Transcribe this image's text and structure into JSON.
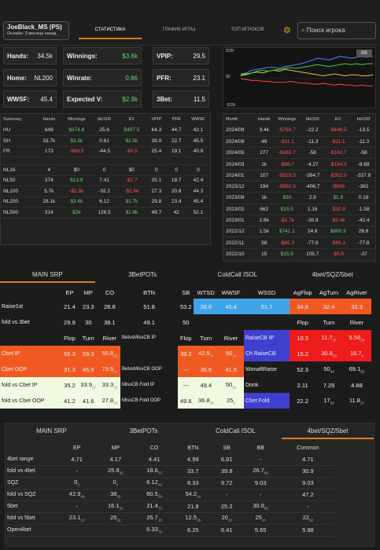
{
  "user": {
    "name": "JoeBlack_MS (PS)",
    "status": "Онлайн: 3 месяца назад"
  },
  "nav": {
    "tabs": [
      "СТАТИСТИКА",
      "ГРАФИК ИГРЫ",
      "ТОП ИГРОКОВ"
    ],
    "active": 0
  },
  "search": {
    "placeholder": "Поиск игрока"
  },
  "stats": [
    {
      "label": "Hands:",
      "value": "34.5k"
    },
    {
      "label": "Winnings:",
      "value": "$3.6k"
    },
    {
      "label": "VPIP:",
      "value": "29.5"
    },
    {
      "label": "Home:",
      "value": "NL200"
    },
    {
      "label": "Winrate:",
      "value": "0.86"
    },
    {
      "label": "PFR:",
      "value": "23.1"
    },
    {
      "label": "WWSF:",
      "value": "45.4"
    },
    {
      "label": "Expected V:",
      "value": "$2.9k"
    },
    {
      "label": "3Bet:",
      "value": "11.5"
    }
  ],
  "summary": {
    "headers": [
      "Summary",
      "Hands",
      "Winnings",
      "bb/100",
      "EV",
      "VPIP",
      "PFR",
      "WWSF"
    ],
    "rows": [
      [
        "HU",
        "649",
        "$374.6",
        "25.6",
        "$407.5",
        "64.3",
        "44.7",
        "42.1"
      ],
      [
        "SH",
        "33.7k",
        "$3.3k",
        "0.61",
        "$2.5k",
        "28.9",
        "22.7",
        "45.5"
      ],
      [
        "FR",
        "173",
        "-$69.5",
        "-44.5",
        "-$0.5",
        "25.4",
        "19.1",
        "40.9"
      ]
    ],
    "limits": [
      [
        "NL16",
        "4",
        "$0",
        "0",
        "$0",
        "0",
        "0",
        "0"
      ],
      [
        "NL50",
        "374",
        "$13.9",
        "7.41",
        "-$7.7",
        "25.1",
        "18.7",
        "42.4"
      ],
      [
        "NL100",
        "5.7k",
        "-$1.8k",
        "-32.2",
        "-$1.6k",
        "27.3",
        "20.8",
        "44.3"
      ],
      [
        "NL200",
        "28.1k",
        "$3.4k",
        "6.12",
        "$1.7k",
        "29.8",
        "23.4",
        "45.4"
      ],
      [
        "NL500",
        "314",
        "$2k",
        "126.5",
        "$2.8k",
        "49.7",
        "42",
        "52.1"
      ]
    ]
  },
  "chart": {
    "ytop": "$28k",
    "ymid": "$0",
    "ybot": "-$28k",
    "badge": "BB"
  },
  "chart_data": {
    "type": "line",
    "ylim": [
      -28,
      28
    ],
    "series": [
      {
        "color": "#3a8bff",
        "values": [
          5,
          6,
          9,
          10,
          11,
          12,
          12,
          11,
          13,
          14,
          15,
          16,
          18,
          20,
          22,
          21,
          20,
          22,
          24,
          23,
          22,
          23,
          24,
          23,
          24
        ]
      },
      {
        "color": "#f0c040",
        "values": [
          4,
          5,
          6,
          7,
          6,
          8,
          9,
          8,
          10,
          9,
          8,
          7,
          6,
          5,
          4,
          3,
          4,
          5,
          4,
          3,
          4,
          4,
          3,
          3,
          4
        ]
      },
      {
        "color": "#44cc44",
        "values": [
          3,
          4,
          6,
          8,
          9,
          8,
          9,
          10,
          11,
          12,
          11,
          12,
          13,
          14,
          15,
          14,
          13,
          14,
          15,
          16,
          15,
          16,
          15,
          16,
          16
        ]
      },
      {
        "color": "#ff4444",
        "values": [
          0,
          -1,
          -2,
          -2,
          -3,
          -3,
          -4,
          -4,
          -4,
          -3,
          -4,
          -5,
          -5,
          -6,
          -6,
          -5,
          -6,
          -7,
          -6,
          -7,
          -7,
          -8,
          -7,
          -8,
          -8
        ]
      }
    ]
  },
  "monthly": {
    "headers": [
      "Month",
      "Hands",
      "Winnings",
      "bb/100",
      "EV",
      "bb/100"
    ],
    "rows": [
      [
        "2024/09",
        "3.4k",
        "-$764.7",
        "-22.2",
        "-$446.5",
        "-13.5"
      ],
      [
        "2024/08",
        "49",
        "-$11.1",
        "-11.3",
        "-$11.1",
        "-11.3"
      ],
      [
        "2024/05",
        "277",
        "-$160.7",
        "-58",
        "-$160.7",
        "-58"
      ],
      [
        "2024/03",
        "1k",
        "-$88.7",
        "-4.27",
        "-$184.3",
        "-8.88"
      ],
      [
        "2024/01",
        "107",
        "-$519.3",
        "-394.7",
        "-$352.9",
        "-337.9"
      ],
      [
        "2023/12",
        "194",
        "-$992.5",
        "-406.7",
        "-$806",
        "-361"
      ],
      [
        "2023/08",
        "1k",
        "$30",
        "2.9",
        "$1.9",
        "0.18"
      ],
      [
        "2023/02",
        "662",
        "$15.5",
        "1.16",
        "-$20.9",
        "-1.58"
      ],
      [
        "2023/01",
        "2.8k",
        "-$1.7k",
        "-30.8",
        "-$2.4k",
        "-42.4"
      ],
      [
        "2022/12",
        "1.5k",
        "$741.1",
        "24.6",
        "$800.3",
        "26.6"
      ],
      [
        "2022/11",
        "59",
        "-$85.3",
        "-77.8",
        "-$85.3",
        "-77.8"
      ],
      [
        "2022/10",
        "15",
        "$15.9",
        "105.7",
        "-$5.6",
        "-37"
      ]
    ],
    "red_cells": [
      [
        0,
        2
      ],
      [
        0,
        4
      ],
      [
        1,
        2
      ],
      [
        1,
        4
      ],
      [
        2,
        2
      ],
      [
        2,
        4
      ],
      [
        3,
        2
      ],
      [
        3,
        4
      ],
      [
        4,
        2
      ],
      [
        4,
        4
      ],
      [
        5,
        2
      ],
      [
        5,
        4
      ],
      [
        7,
        4
      ],
      [
        8,
        2
      ],
      [
        8,
        4
      ],
      [
        10,
        2
      ],
      [
        10,
        4
      ],
      [
        11,
        4
      ]
    ],
    "green_cells": [
      [
        6,
        2
      ],
      [
        6,
        4
      ],
      [
        7,
        2
      ],
      [
        9,
        2
      ],
      [
        9,
        4
      ],
      [
        11,
        2
      ]
    ]
  },
  "tabs1": [
    "MAIN SRP",
    "3BetPOTs",
    "ColdCall ISOL",
    "4bet/SQZ/5bet"
  ],
  "tabs2": [
    "MAIN SRP",
    "3BetPOTs",
    "ColdCall ISOL",
    "4bet/SQZ/5bet"
  ],
  "grid1": {
    "rows": [
      [
        [
          "",
          "#1c1c1c",
          ""
        ],
        [
          "EP",
          "#1c1c1c",
          ""
        ],
        [
          "MP",
          "#1c1c1c",
          ""
        ],
        [
          "CO",
          "#1c1c1c",
          ""
        ],
        [
          "BTN",
          "#1c1c1c",
          ""
        ],
        [
          "SB",
          "#1c1c1c",
          ""
        ],
        [
          "WTSD",
          "#1c1c1c",
          ""
        ],
        [
          "WWSF",
          "#1c1c1c",
          ""
        ],
        [
          "WSSD",
          "#1c1c1c",
          ""
        ],
        [
          "AgFlop",
          "#1c1c1c",
          ""
        ],
        [
          "AgTurn",
          "#1c1c1c",
          ""
        ],
        [
          "AgRiver",
          "#1c1c1c",
          ""
        ]
      ],
      [
        [
          "Raise1st",
          "#1c1c1c",
          ""
        ],
        [
          "21.4",
          "#1c1c1c",
          ""
        ],
        [
          "23.3",
          "#1c1c1c",
          ""
        ],
        [
          "28.8",
          "#1c1c1c",
          ""
        ],
        [
          "51.8",
          "#1c1c1c",
          ""
        ],
        [
          "53.2",
          "#1c1c1c",
          ""
        ],
        [
          "39.6",
          "#3ea6e8",
          ""
        ],
        [
          "45.4",
          "#3ea6e8",
          ""
        ],
        [
          "51.7",
          "#3ea6e8",
          ""
        ],
        [
          "34.8",
          "#f05a22",
          ""
        ],
        [
          "32.4",
          "#f05a22",
          ""
        ],
        [
          "33.3",
          "#f05a22",
          ""
        ]
      ],
      [
        [
          "fold vs 3bet",
          "#1c1c1c",
          ""
        ],
        [
          "29.9",
          "#1c1c1c",
          ""
        ],
        [
          "30",
          "#1c1c1c",
          ""
        ],
        [
          "38.1",
          "#1c1c1c",
          ""
        ],
        [
          "49.1",
          "#1c1c1c",
          ""
        ],
        [
          "50",
          "#1c1c1c",
          ""
        ],
        [
          "",
          "#1c1c1c",
          ""
        ],
        [
          "",
          "#1c1c1c",
          ""
        ],
        [
          "",
          "#1c1c1c",
          ""
        ],
        [
          "Flop",
          "#1c1c1c",
          ""
        ],
        [
          "Turn",
          "#1c1c1c",
          ""
        ],
        [
          "River",
          "#1c1c1c",
          ""
        ]
      ],
      [
        [
          "",
          "#1c1c1c",
          ""
        ],
        [
          "Flop",
          "#1c1c1c",
          ""
        ],
        [
          "Turn",
          "#1c1c1c",
          ""
        ],
        [
          "River",
          "#1c1c1c",
          ""
        ],
        [
          "BetvsMissCB IP",
          "#1c1c1c",
          ""
        ],
        [
          "Flop",
          "#1c1c1c",
          ""
        ],
        [
          "Turn",
          "#1c1c1c",
          ""
        ],
        [
          "River",
          "#1c1c1c",
          ""
        ],
        [
          "RaiseCB IP",
          "#4040d0",
          ""
        ],
        [
          "10.3",
          "#ee1c1c",
          ""
        ],
        [
          "11.7",
          "#ee1c1c",
          "25"
        ],
        [
          "5.56",
          "#ee1c1c",
          "18"
        ]
      ],
      [
        [
          "Cbet IP",
          "#f05a22",
          ""
        ],
        [
          "55.3",
          "#f05a22",
          ""
        ],
        [
          "59.3",
          "#f05a22",
          ""
        ],
        [
          "55.8",
          "#f05a22",
          "43"
        ],
        [
          "",
          "#1c1c1c",
          ""
        ],
        [
          "39.2",
          "#f05a22",
          ""
        ],
        [
          "42.9",
          "#f05a22",
          "70"
        ],
        [
          "50",
          "#f05a22",
          "14"
        ],
        [
          "Ch RaiseCB",
          "#4040d0",
          ""
        ],
        [
          "15.2",
          "#ee1c1c",
          ""
        ],
        [
          "30.8",
          "#ee1c1c",
          "26"
        ],
        [
          "16.7",
          "#ee1c1c",
          "6"
        ]
      ],
      [
        [
          "Cbet OOP",
          "#f05a22",
          ""
        ],
        [
          "31.3",
          "#f05a22",
          ""
        ],
        [
          "46.9",
          "#f05a22",
          ""
        ],
        [
          "73.5",
          "#f05a22",
          "34"
        ],
        [
          "BetvsMissCB OOP",
          "#1c1c1c",
          ""
        ],
        [
          "---",
          "#f05a22",
          ""
        ],
        [
          "36.6",
          "#f05a22",
          ""
        ],
        [
          "41.5",
          "#f05a22",
          ""
        ],
        [
          "WonaftRaise",
          "#1c1c1c",
          ""
        ],
        [
          "52.3",
          "#1c1c1c",
          ""
        ],
        [
          "50",
          "#1c1c1c",
          "44"
        ],
        [
          "69.1",
          "#1c1c1c",
          "55"
        ]
      ],
      [
        [
          "fold vs Cbet IP",
          "#f0fae0",
          ""
        ],
        [
          "35.2",
          "#f0fae0",
          ""
        ],
        [
          "33.9",
          "#f0fae0",
          "37"
        ],
        [
          "33.3",
          "#f0fae0",
          "15"
        ],
        [
          "MissCB Fold IP",
          "#1c1c1c",
          ""
        ],
        [
          "---",
          "#f0fae0",
          ""
        ],
        [
          "49.4",
          "#f0fae0",
          ""
        ],
        [
          "50",
          "#f0fae0",
          "20"
        ],
        [
          "Donk",
          "#1c1c1c",
          ""
        ],
        [
          "2.11",
          "#1c1c1c",
          ""
        ],
        [
          "7.29",
          "#1c1c1c",
          ""
        ],
        [
          "4.88",
          "#1c1c1c",
          ""
        ]
      ],
      [
        [
          "fold vs Cbet OOP",
          "#f0fae0",
          ""
        ],
        [
          "41.2",
          "#f0fae0",
          ""
        ],
        [
          "41.6",
          "#f0fae0",
          ""
        ],
        [
          "27.8",
          "#f0fae0",
          "54"
        ],
        [
          "MissCB Fold OOP",
          "#1c1c1c",
          ""
        ],
        [
          "49.6",
          "#f0fae0",
          ""
        ],
        [
          "36.8",
          "#f0fae0",
          "38"
        ],
        [
          "25",
          "#f0fae0",
          "8"
        ],
        [
          "Cbet Fold",
          "#4040d0",
          ""
        ],
        [
          "22.2",
          "#1c1c1c",
          ""
        ],
        [
          "17",
          "#1c1c1c",
          "53"
        ],
        [
          "11.8",
          "#1c1c1c",
          "17"
        ]
      ]
    ]
  },
  "grid2": {
    "headers": [
      "",
      "EP",
      "MP",
      "CO",
      "BTN",
      "SB",
      "BB",
      "Common"
    ],
    "rows": [
      [
        [
          "4bet range",
          ""
        ],
        [
          "4.71",
          ""
        ],
        [
          "4.17",
          ""
        ],
        [
          "4.41",
          ""
        ],
        [
          "4.99",
          ""
        ],
        [
          "6.81",
          ""
        ],
        [
          "-",
          ""
        ],
        [
          "4.71",
          ""
        ]
      ],
      [
        [
          "fold vs 4bet",
          ""
        ],
        [
          "-",
          ""
        ],
        [
          "25.8",
          "31"
        ],
        [
          "18.6",
          "70"
        ],
        [
          "33.7",
          ""
        ],
        [
          "39.8",
          ""
        ],
        [
          "26.7",
          "88"
        ],
        [
          "30.9",
          ""
        ]
      ],
      [
        [
          "SQZ",
          ""
        ],
        [
          "0",
          "0"
        ],
        [
          "0",
          "0"
        ],
        [
          "6.12",
          "49"
        ],
        [
          "8.33",
          ""
        ],
        [
          "9.72",
          ""
        ],
        [
          "9.03",
          ""
        ],
        [
          "9.03",
          ""
        ]
      ],
      [
        [
          "fold vs SQZ",
          ""
        ],
        [
          "42.9",
          "49"
        ],
        [
          "38",
          "50"
        ],
        [
          "60.5",
          "38"
        ],
        [
          "54.2",
          "24"
        ],
        [
          "-",
          ""
        ],
        [
          "-",
          ""
        ],
        [
          "47.2",
          ""
        ]
      ],
      [
        [
          "5bet",
          ""
        ],
        [
          "-",
          ""
        ],
        [
          "16.1",
          "31"
        ],
        [
          "21.4",
          "70"
        ],
        [
          "21.8",
          ""
        ],
        [
          "25.2",
          ""
        ],
        [
          "30.8",
          "88"
        ],
        [
          "-",
          ""
        ]
      ],
      [
        [
          "fold vs 5bet",
          ""
        ],
        [
          "23.1",
          "13"
        ],
        [
          "25",
          "32"
        ],
        [
          "26.7",
          "15"
        ],
        [
          "12.5",
          "16"
        ],
        [
          "20",
          "10"
        ],
        [
          "25",
          "16"
        ],
        [
          "22",
          "82"
        ]
      ],
      [
        [
          "Open4bet",
          ""
        ],
        [
          "",
          ""
        ],
        [
          "",
          ""
        ],
        [
          "6.33",
          "79"
        ],
        [
          "6.25",
          ""
        ],
        [
          "6.41",
          ""
        ],
        [
          "5.65",
          ""
        ],
        [
          "5.98",
          ""
        ]
      ]
    ]
  }
}
